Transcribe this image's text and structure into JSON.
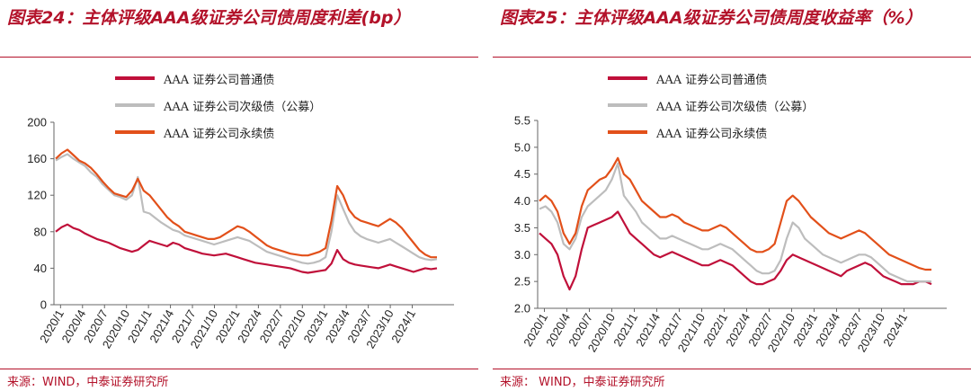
{
  "colors": {
    "accent": "#b3122a",
    "ordinary": "#c0103a",
    "subordinated": "#bdbdbd",
    "perpetual": "#e2501a"
  },
  "chart_data": [
    {
      "type": "line",
      "title": "图表24：主体评级AAA级证券公司债周度利差(bp）",
      "source": "来源：WIND，中泰证券研究所",
      "ylim": [
        0,
        200
      ],
      "yticks": [
        "0",
        "40",
        "80",
        "120",
        "160",
        "200"
      ],
      "xticks": [
        "2020/1",
        "2020/4",
        "2020/7",
        "2020/10",
        "2021/1",
        "2021/4",
        "2021/7",
        "2021/10",
        "2022/1",
        "2022/4",
        "2022/7",
        "2022/10",
        "2023/1",
        "2023/4",
        "2023/7",
        "2023/10",
        "2024/1"
      ],
      "legend_position": "top-left",
      "series": [
        {
          "name": "AAA 证券公司普通债",
          "values": [
            80,
            85,
            88,
            84,
            82,
            78,
            75,
            72,
            70,
            68,
            65,
            62,
            60,
            58,
            60,
            65,
            70,
            68,
            66,
            64,
            68,
            66,
            62,
            60,
            58,
            56,
            55,
            54,
            55,
            56,
            54,
            52,
            50,
            48,
            46,
            45,
            44,
            43,
            42,
            41,
            40,
            38,
            36,
            35,
            36,
            37,
            38,
            45,
            60,
            50,
            46,
            44,
            43,
            42,
            41,
            40,
            42,
            44,
            42,
            40,
            38,
            36,
            38,
            40,
            39,
            40
          ]
        },
        {
          "name": "AAA 证券公司次级债（公募）",
          "values": [
            158,
            162,
            165,
            160,
            156,
            152,
            145,
            140,
            132,
            126,
            120,
            118,
            115,
            120,
            140,
            102,
            100,
            95,
            90,
            86,
            82,
            80,
            76,
            74,
            72,
            70,
            68,
            66,
            68,
            70,
            72,
            74,
            72,
            70,
            66,
            62,
            58,
            56,
            54,
            52,
            50,
            48,
            46,
            45,
            46,
            48,
            52,
            80,
            120,
            105,
            90,
            80,
            75,
            72,
            70,
            68,
            70,
            72,
            68,
            64,
            60,
            56,
            52,
            50,
            49,
            50
          ]
        },
        {
          "name": "AAA 证券公司永续债",
          "values": [
            160,
            166,
            170,
            164,
            158,
            155,
            150,
            143,
            135,
            128,
            122,
            120,
            118,
            125,
            138,
            125,
            120,
            112,
            104,
            96,
            90,
            86,
            80,
            78,
            76,
            74,
            72,
            72,
            74,
            78,
            82,
            86,
            84,
            80,
            75,
            70,
            65,
            62,
            60,
            58,
            56,
            55,
            54,
            54,
            56,
            58,
            62,
            92,
            130,
            120,
            104,
            96,
            92,
            90,
            88,
            86,
            90,
            94,
            90,
            84,
            76,
            68,
            60,
            55,
            52,
            52
          ]
        }
      ]
    },
    {
      "type": "line",
      "title": "图表25：主体评级AAA级证券公司债周度收益率（%）",
      "source": "来源： WIND，中泰证券研究所",
      "ylim": [
        2.0,
        5.5
      ],
      "yticks": [
        "2.0",
        "2.5",
        "3.0",
        "3.5",
        "4.0",
        "4.5",
        "5.0",
        "5.5"
      ],
      "xticks": [
        "2020/1",
        "2020/4",
        "2020/7",
        "2020/10",
        "2021/1",
        "2021/4",
        "2021/7",
        "2021/10",
        "2022/1",
        "2022/4",
        "2022/7",
        "2022/10",
        "2023/1",
        "2023/4",
        "2023/7",
        "2023/10",
        "2024/1"
      ],
      "legend_position": "top-left",
      "series": [
        {
          "name": "AAA 证券公司普通债",
          "values": [
            3.4,
            3.3,
            3.2,
            3.0,
            2.6,
            2.35,
            2.6,
            3.1,
            3.5,
            3.55,
            3.6,
            3.65,
            3.7,
            3.8,
            3.6,
            3.4,
            3.3,
            3.2,
            3.1,
            3.0,
            2.95,
            3.0,
            3.05,
            3.0,
            2.95,
            2.9,
            2.85,
            2.8,
            2.8,
            2.85,
            2.9,
            2.85,
            2.8,
            2.7,
            2.6,
            2.5,
            2.45,
            2.45,
            2.5,
            2.55,
            2.7,
            2.9,
            3.0,
            2.95,
            2.9,
            2.85,
            2.8,
            2.75,
            2.7,
            2.65,
            2.6,
            2.7,
            2.75,
            2.8,
            2.85,
            2.8,
            2.7,
            2.6,
            2.55,
            2.5,
            2.45,
            2.45,
            2.45,
            2.5,
            2.5,
            2.45
          ]
        },
        {
          "name": "AAA 证券公司次级债（公募）",
          "values": [
            3.85,
            3.9,
            3.8,
            3.6,
            3.2,
            3.1,
            3.3,
            3.7,
            3.9,
            4.0,
            4.1,
            4.2,
            4.4,
            4.7,
            4.1,
            3.95,
            3.8,
            3.6,
            3.5,
            3.4,
            3.3,
            3.3,
            3.35,
            3.3,
            3.25,
            3.2,
            3.15,
            3.1,
            3.1,
            3.15,
            3.2,
            3.15,
            3.1,
            3.0,
            2.9,
            2.8,
            2.7,
            2.65,
            2.65,
            2.7,
            2.9,
            3.3,
            3.6,
            3.5,
            3.3,
            3.2,
            3.1,
            3.0,
            2.95,
            2.9,
            2.85,
            2.9,
            2.95,
            3.0,
            3.0,
            2.95,
            2.85,
            2.75,
            2.65,
            2.6,
            2.55,
            2.5,
            2.5,
            2.5,
            2.5,
            2.5
          ]
        },
        {
          "name": "AAA 证券公司永续债",
          "values": [
            4.0,
            4.1,
            4.0,
            3.8,
            3.4,
            3.2,
            3.4,
            3.9,
            4.2,
            4.3,
            4.4,
            4.45,
            4.6,
            4.8,
            4.5,
            4.4,
            4.2,
            4.0,
            3.9,
            3.8,
            3.7,
            3.7,
            3.75,
            3.7,
            3.6,
            3.55,
            3.5,
            3.45,
            3.45,
            3.5,
            3.55,
            3.5,
            3.4,
            3.3,
            3.2,
            3.1,
            3.05,
            3.05,
            3.1,
            3.2,
            3.6,
            4.0,
            4.1,
            4.0,
            3.85,
            3.7,
            3.6,
            3.5,
            3.4,
            3.35,
            3.3,
            3.35,
            3.4,
            3.45,
            3.4,
            3.3,
            3.2,
            3.1,
            3.0,
            2.95,
            2.9,
            2.85,
            2.8,
            2.75,
            2.72,
            2.72
          ]
        }
      ]
    }
  ]
}
